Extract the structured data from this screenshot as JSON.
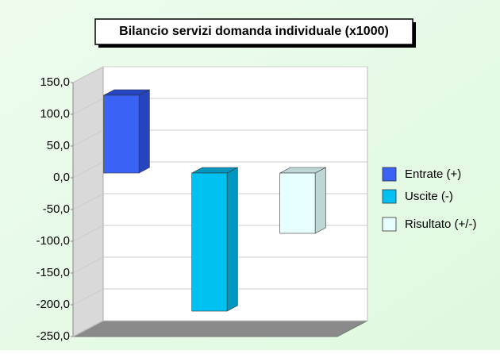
{
  "chart_data": {
    "type": "bar3d",
    "title": "Bilancio servizi domanda individuale (x1000)",
    "categories": [
      null
    ],
    "series": [
      {
        "name": "Entrate (+)",
        "color": "#3a62f5",
        "side": "#2545c0",
        "values": [
          122.5
        ]
      },
      {
        "name": "Uscite (-)",
        "color": "#00c2f2",
        "side": "#0096bf",
        "values": [
          -217.5
        ]
      },
      {
        "name": "Risultato (+/-)",
        "color": "#e8ffff",
        "side": "#bfd6d6",
        "values": [
          -95
        ]
      }
    ],
    "ylim": [
      -250,
      150
    ],
    "yticks": [
      {
        "value": -250,
        "label": "-250,0"
      },
      {
        "value": -200,
        "label": "-200,0"
      },
      {
        "value": -150,
        "label": "-150,0"
      },
      {
        "value": -100,
        "label": "-100,0"
      },
      {
        "value": -50,
        "label": "-50,0"
      },
      {
        "value": 0,
        "label": "0,0"
      },
      {
        "value": 50,
        "label": "50,0"
      },
      {
        "value": 100,
        "label": "100,0"
      },
      {
        "value": 150,
        "label": "150,0"
      }
    ],
    "grid": true,
    "legend": "right"
  }
}
